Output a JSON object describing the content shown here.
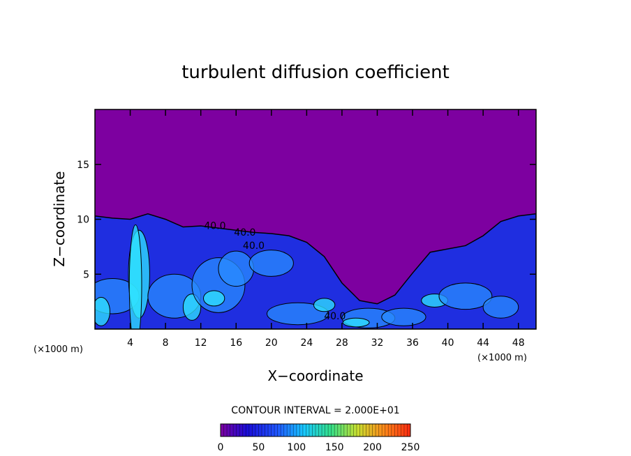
{
  "chart_data": {
    "type": "heatmap",
    "title": "turbulent diffusion coefficient",
    "xlabel": "X−coordinate",
    "ylabel": "Z−coordinate",
    "x_unit_left": "(×1000 m)",
    "x_unit_right": "(×1000 m)",
    "xlim": [
      0,
      50
    ],
    "ylim": [
      0,
      20
    ],
    "x_ticks": [
      4,
      8,
      12,
      16,
      20,
      24,
      28,
      32,
      36,
      40,
      44,
      48
    ],
    "y_ticks": [
      5,
      10,
      15
    ],
    "contour_interval_text": "CONTOUR INTERVAL = 2.000E+01",
    "contour_labels": [
      {
        "text": "40.0",
        "x": 13.6,
        "y": 9.1
      },
      {
        "text": "40.0",
        "x": 17.0,
        "y": 8.5
      },
      {
        "text": "40.0",
        "x": 18.0,
        "y": 7.3
      },
      {
        "text": "40.0",
        "x": 27.2,
        "y": 0.9
      }
    ],
    "colorbar": {
      "min": 0,
      "max": 250,
      "ticks": [
        0,
        50,
        100,
        150,
        200,
        250
      ],
      "colors": [
        "#7d00a0",
        "#1a0dd8",
        "#1f57ff",
        "#18c8ff",
        "#33e08a",
        "#c8e030",
        "#ff8a1a",
        "#ff2a10"
      ]
    },
    "colors": {
      "background_field": "#7d00a0",
      "low_region": "#1f2ee0",
      "mid_region": "#2a8cff",
      "high_region": "#30e6ff",
      "contour": "#000000"
    },
    "boundary_height_profile": {
      "x": [
        0,
        2,
        4,
        6,
        8,
        10,
        12,
        14,
        16,
        18,
        20,
        22,
        24,
        26,
        28,
        30,
        32,
        34,
        36,
        38,
        40,
        42,
        44,
        46,
        48,
        50
      ],
      "z": [
        10.3,
        10.1,
        10.0,
        10.5,
        10.0,
        9.3,
        9.4,
        9.2,
        9.0,
        8.8,
        8.7,
        8.5,
        7.9,
        6.6,
        4.2,
        2.6,
        2.3,
        3.1,
        5.1,
        7.0,
        7.3,
        7.6,
        8.5,
        9.8,
        10.3,
        10.5
      ]
    }
  }
}
